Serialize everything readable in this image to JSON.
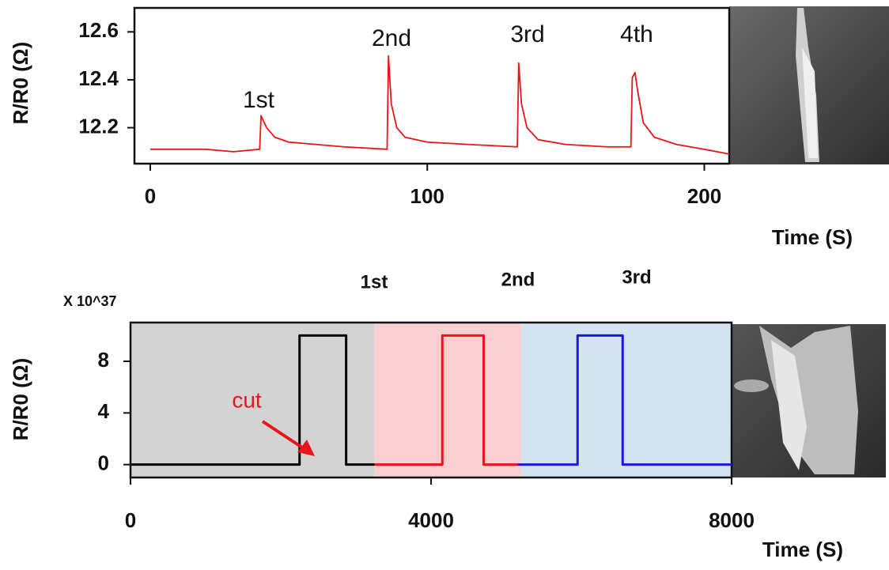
{
  "chart_data": [
    {
      "type": "line",
      "ylabel": "R/R0 (Ω)",
      "xlabel": "Time (S)",
      "x": [
        0,
        10,
        20,
        30,
        39.5,
        40,
        42,
        45,
        50,
        60,
        70,
        85.5,
        86,
        87,
        89,
        92,
        100,
        115,
        132.5,
        133,
        134,
        136,
        140,
        150,
        165,
        173.5,
        174,
        175,
        176,
        178,
        182,
        190,
        200,
        209
      ],
      "series": [
        {
          "color": "#e8161b",
          "values": [
            12.11,
            12.11,
            12.11,
            12.1,
            12.11,
            12.25,
            12.2,
            12.16,
            12.14,
            12.13,
            12.12,
            12.11,
            12.5,
            12.3,
            12.2,
            12.16,
            12.14,
            12.13,
            12.12,
            12.47,
            12.3,
            12.2,
            12.15,
            12.13,
            12.12,
            12.12,
            12.41,
            12.43,
            12.35,
            12.22,
            12.16,
            12.13,
            12.11,
            12.09
          ]
        }
      ],
      "xlim": [
        -5.7,
        209
      ],
      "ylim": [
        12.05,
        12.7
      ],
      "xticks": [
        0,
        100,
        200
      ],
      "yticks": [
        12.2,
        12.4,
        12.6
      ],
      "annotations": [
        "1st",
        "2nd",
        "3rd",
        "4th"
      ]
    },
    {
      "type": "line",
      "ylabel": "R/R0 (Ω)",
      "xlabel": "Time (S)",
      "y_multiplier": "X 10^37",
      "series": [
        {
          "color": "#000000",
          "x": [
            0,
            2250,
            2250,
            2870,
            2870,
            3250
          ],
          "values": [
            0,
            0,
            10,
            10,
            0,
            0
          ]
        },
        {
          "color": "#e8161b",
          "x": [
            3250,
            4150,
            4150,
            4700,
            4700,
            5150
          ],
          "values": [
            0,
            0,
            10,
            10,
            0,
            0
          ]
        },
        {
          "color": "#1a1ad6",
          "x": [
            5150,
            5950,
            5950,
            6550,
            6550,
            8000
          ],
          "values": [
            0,
            0,
            10,
            10,
            0,
            0
          ]
        }
      ],
      "spans": [
        {
          "start": 0,
          "end": 3250,
          "color": "#d3d3d3"
        },
        {
          "start": 3250,
          "end": 5200,
          "color": "#f9cfd1"
        },
        {
          "start": 5200,
          "end": 8000,
          "color": "#d4e3f2"
        }
      ],
      "xlim": [
        0,
        8000
      ],
      "ylim": [
        -1,
        11
      ],
      "xticks": [
        0,
        4000,
        8000
      ],
      "yticks": [
        0,
        4,
        8
      ],
      "annotations": [
        "1st",
        "2nd",
        "3rd",
        "cut"
      ]
    }
  ]
}
